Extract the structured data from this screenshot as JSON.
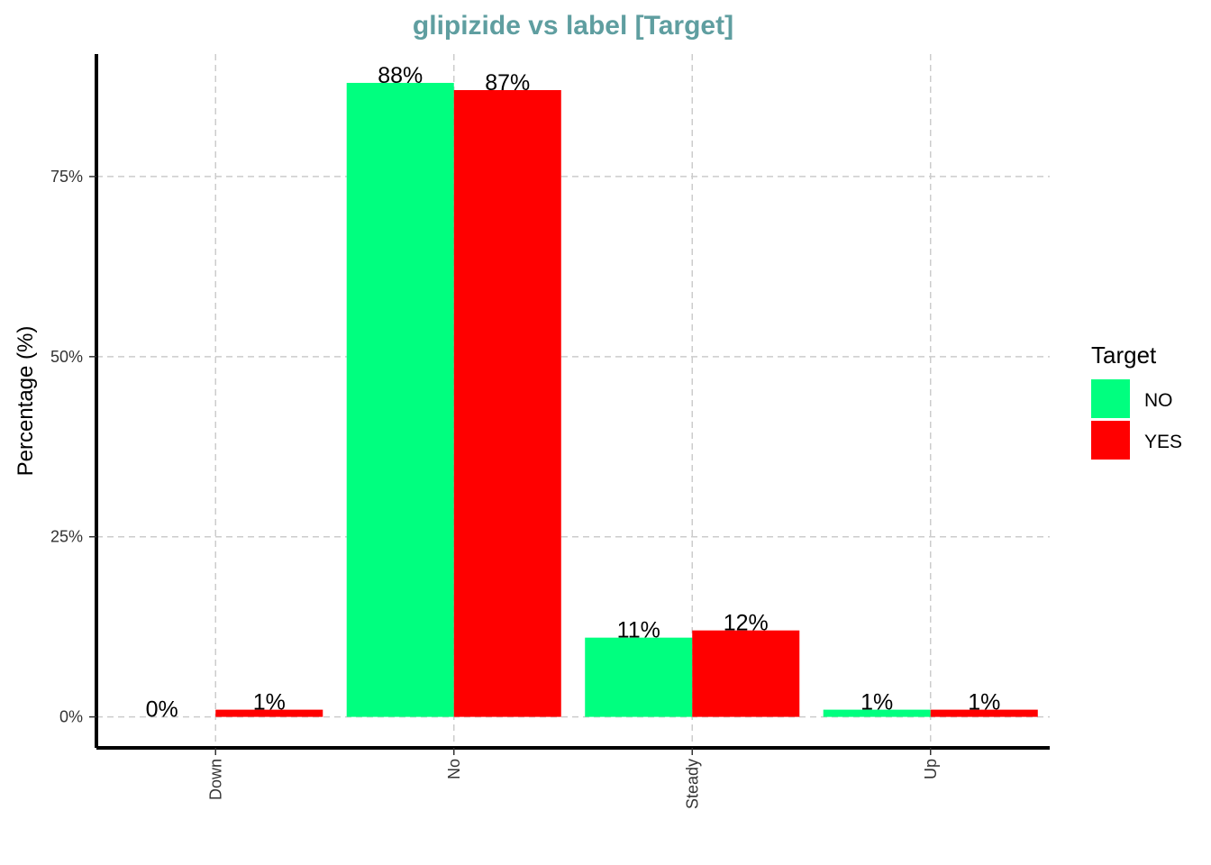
{
  "chart_data": {
    "type": "bar",
    "title": "glipizide vs label [Target]",
    "xlabel": "",
    "ylabel": "Percentage (%)",
    "categories": [
      "Down",
      "No",
      "Steady",
      "Up"
    ],
    "series": [
      {
        "name": "NO",
        "values": [
          0,
          88,
          11,
          1
        ],
        "labels": [
          "0%",
          "88%",
          "11%",
          "1%"
        ],
        "color": "#00FF7F"
      },
      {
        "name": "YES",
        "values": [
          1,
          87,
          12,
          1
        ],
        "labels": [
          "1%",
          "87%",
          "12%",
          "1%"
        ],
        "color": "#FF0000"
      }
    ],
    "yticks": [
      {
        "value": 0,
        "label": "0%"
      },
      {
        "value": 25,
        "label": "25%"
      },
      {
        "value": 50,
        "label": "50%"
      },
      {
        "value": 75,
        "label": "75%"
      }
    ],
    "ylim": [
      -4.3,
      92
    ],
    "grid": true,
    "legend": {
      "title": "Target",
      "position": "right"
    },
    "colors": {
      "title": "#5F9EA0",
      "grid": "#CCCCCC",
      "axis": "#000000"
    }
  }
}
